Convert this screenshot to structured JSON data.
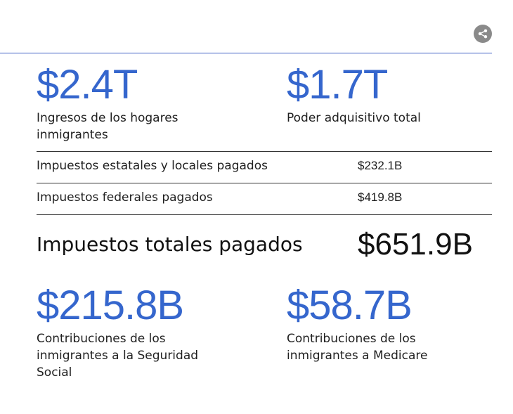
{
  "share": {
    "icon": "share-icon"
  },
  "stats_top": [
    {
      "value": "$2.4T",
      "label": "Ingresos de los hogares inmigrantes"
    },
    {
      "value": "$1.7T",
      "label": "Poder adquisitivo total"
    }
  ],
  "taxes": [
    {
      "label": "Impuestos estatales y locales pagados",
      "value": "$232.1B"
    },
    {
      "label": "Impuestos federales pagados",
      "value": "$419.8B"
    }
  ],
  "total": {
    "label": "Impuestos totales pagados",
    "value": "$651.9B"
  },
  "stats_bottom": [
    {
      "value": "$215.8B",
      "label": "Contribuciones de los inmigrantes a la Seguridad Social"
    },
    {
      "value": "$58.7B",
      "label": "Contribuciones de los inmigrantes a Medicare"
    }
  ],
  "colors": {
    "accent": "#3566cd",
    "rule": "#3d5fc4",
    "share_bg": "#8a8a8a"
  }
}
